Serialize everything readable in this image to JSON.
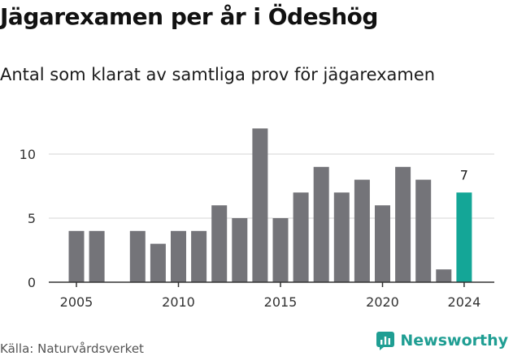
{
  "title": "Jägarexamen per år i Ödeshög",
  "subtitle": "Antal som klarat av samtliga prov för jägarexamen",
  "source": "Källa: Naturvårdsverket",
  "brand": "Newsworthy",
  "colors": {
    "bar": "#747479",
    "highlight": "#14a697",
    "grid": "#d4d4d4",
    "axis": "#333333",
    "brand": "#1f9e93"
  },
  "chart_data": {
    "type": "bar",
    "title": "Jägarexamen per år i Ödeshög",
    "subtitle": "Antal som klarat av samtliga prov för jägarexamen",
    "x": [
      2005,
      2006,
      2007,
      2008,
      2009,
      2010,
      2011,
      2012,
      2013,
      2014,
      2015,
      2016,
      2017,
      2018,
      2019,
      2020,
      2021,
      2022,
      2023,
      2024
    ],
    "values": [
      4,
      4,
      null,
      4,
      3,
      4,
      4,
      6,
      5,
      12,
      5,
      7,
      9,
      7,
      8,
      6,
      9,
      8,
      1,
      7
    ],
    "x_ticks": [
      "2005",
      "2010",
      "2015",
      "2020",
      "2024"
    ],
    "y_ticks": [
      "0",
      "5",
      "10"
    ],
    "ylim": [
      0,
      13
    ],
    "highlight_index": 19,
    "data_labels": [
      {
        "index": 19,
        "text": "7"
      }
    ],
    "grid": true,
    "legend": "none"
  }
}
